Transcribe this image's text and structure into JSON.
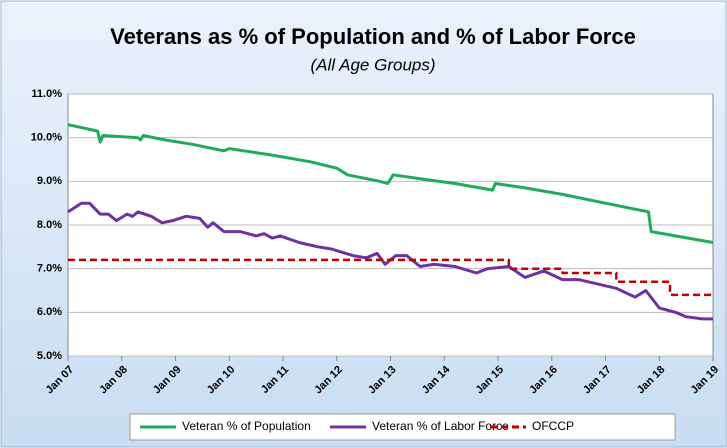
{
  "chart_data": {
    "type": "line",
    "title": "Veterans as % of Population and % of Labor Force",
    "subtitle": "(All Age Groups)",
    "xlim": [
      2007,
      2019
    ],
    "xticks": [
      {
        "value": 2007,
        "label": "Jan 07"
      },
      {
        "value": 2008,
        "label": "Jan 08"
      },
      {
        "value": 2009,
        "label": "Jan 09"
      },
      {
        "value": 2010,
        "label": "Jan 10"
      },
      {
        "value": 2011,
        "label": "Jan 11"
      },
      {
        "value": 2012,
        "label": "Jan 12"
      },
      {
        "value": 2013,
        "label": "Jan 13"
      },
      {
        "value": 2014,
        "label": "Jan 14"
      },
      {
        "value": 2015,
        "label": "Jan 15"
      },
      {
        "value": 2016,
        "label": "Jan 16"
      },
      {
        "value": 2017,
        "label": "Jan 17"
      },
      {
        "value": 2018,
        "label": "Jan 18"
      },
      {
        "value": 2019,
        "label": "Jan 19"
      }
    ],
    "ylim": [
      5,
      11
    ],
    "yticks": [
      {
        "value": 5,
        "label": "5.0%"
      },
      {
        "value": 6,
        "label": "6.0%"
      },
      {
        "value": 7,
        "label": "7.0%"
      },
      {
        "value": 8,
        "label": "8.0%"
      },
      {
        "value": 9,
        "label": "9.0%"
      },
      {
        "value": 10,
        "label": "10.0%"
      },
      {
        "value": 11,
        "label": "11.0%"
      }
    ],
    "grid": true,
    "legend": "bottom",
    "series": [
      {
        "name": "Veteran % of Population",
        "color": "#1fab5a",
        "dash": false,
        "x": [
          2007,
          2007.55,
          2007.6,
          2007.65,
          2008.3,
          2008.35,
          2008.4,
          2008.8,
          2009.3,
          2009.9,
          2010.0,
          2010.8,
          2011.5,
          2012.0,
          2012.2,
          2012.8,
          2012.95,
          2013.05,
          2013.6,
          2014.2,
          2014.9,
          2014.95,
          2015.5,
          2016.2,
          2017.0,
          2017.6,
          2017.8,
          2017.85,
          2018.3,
          2019.0
        ],
        "values": [
          10.3,
          10.15,
          9.9,
          10.05,
          10.0,
          9.95,
          10.05,
          9.95,
          9.85,
          9.7,
          9.75,
          9.6,
          9.45,
          9.3,
          9.15,
          9.0,
          8.95,
          9.15,
          9.05,
          8.95,
          8.8,
          8.95,
          8.85,
          8.7,
          8.5,
          8.35,
          8.3,
          7.85,
          7.75,
          7.6
        ]
      },
      {
        "name": "Veteran % of Labor Force",
        "color": "#7030a0",
        "dash": false,
        "x": [
          2007,
          2007.25,
          2007.4,
          2007.6,
          2007.75,
          2007.9,
          2008.1,
          2008.2,
          2008.3,
          2008.55,
          2008.75,
          2008.95,
          2009.2,
          2009.45,
          2009.6,
          2009.7,
          2009.9,
          2010.2,
          2010.5,
          2010.65,
          2010.8,
          2010.95,
          2011.3,
          2011.65,
          2011.9,
          2012.3,
          2012.55,
          2012.75,
          2012.9,
          2013.1,
          2013.3,
          2013.55,
          2013.8,
          2014.2,
          2014.6,
          2014.8,
          2015.2,
          2015.5,
          2015.85,
          2016.2,
          2016.5,
          2017.2,
          2017.55,
          2017.75,
          2018.0,
          2018.3,
          2018.5,
          2018.8,
          2019.0
        ],
        "values": [
          8.3,
          8.5,
          8.5,
          8.25,
          8.25,
          8.1,
          8.25,
          8.2,
          8.3,
          8.2,
          8.05,
          8.1,
          8.2,
          8.15,
          7.95,
          8.05,
          7.85,
          7.85,
          7.75,
          7.8,
          7.7,
          7.75,
          7.6,
          7.5,
          7.45,
          7.3,
          7.25,
          7.35,
          7.1,
          7.3,
          7.3,
          7.05,
          7.1,
          7.05,
          6.9,
          7.0,
          7.05,
          6.8,
          6.95,
          6.75,
          6.75,
          6.55,
          6.35,
          6.5,
          6.1,
          6.0,
          5.9,
          5.85,
          5.85
        ]
      },
      {
        "name": "OFCCP",
        "color": "#c00000",
        "dash": true,
        "x": [
          2007,
          2015.2,
          2015.2,
          2016.2,
          2016.2,
          2017.2,
          2017.2,
          2018.2,
          2018.2,
          2019.0
        ],
        "values": [
          7.2,
          7.2,
          7.0,
          7.0,
          6.9,
          6.9,
          6.7,
          6.7,
          6.4,
          6.4
        ]
      }
    ]
  }
}
